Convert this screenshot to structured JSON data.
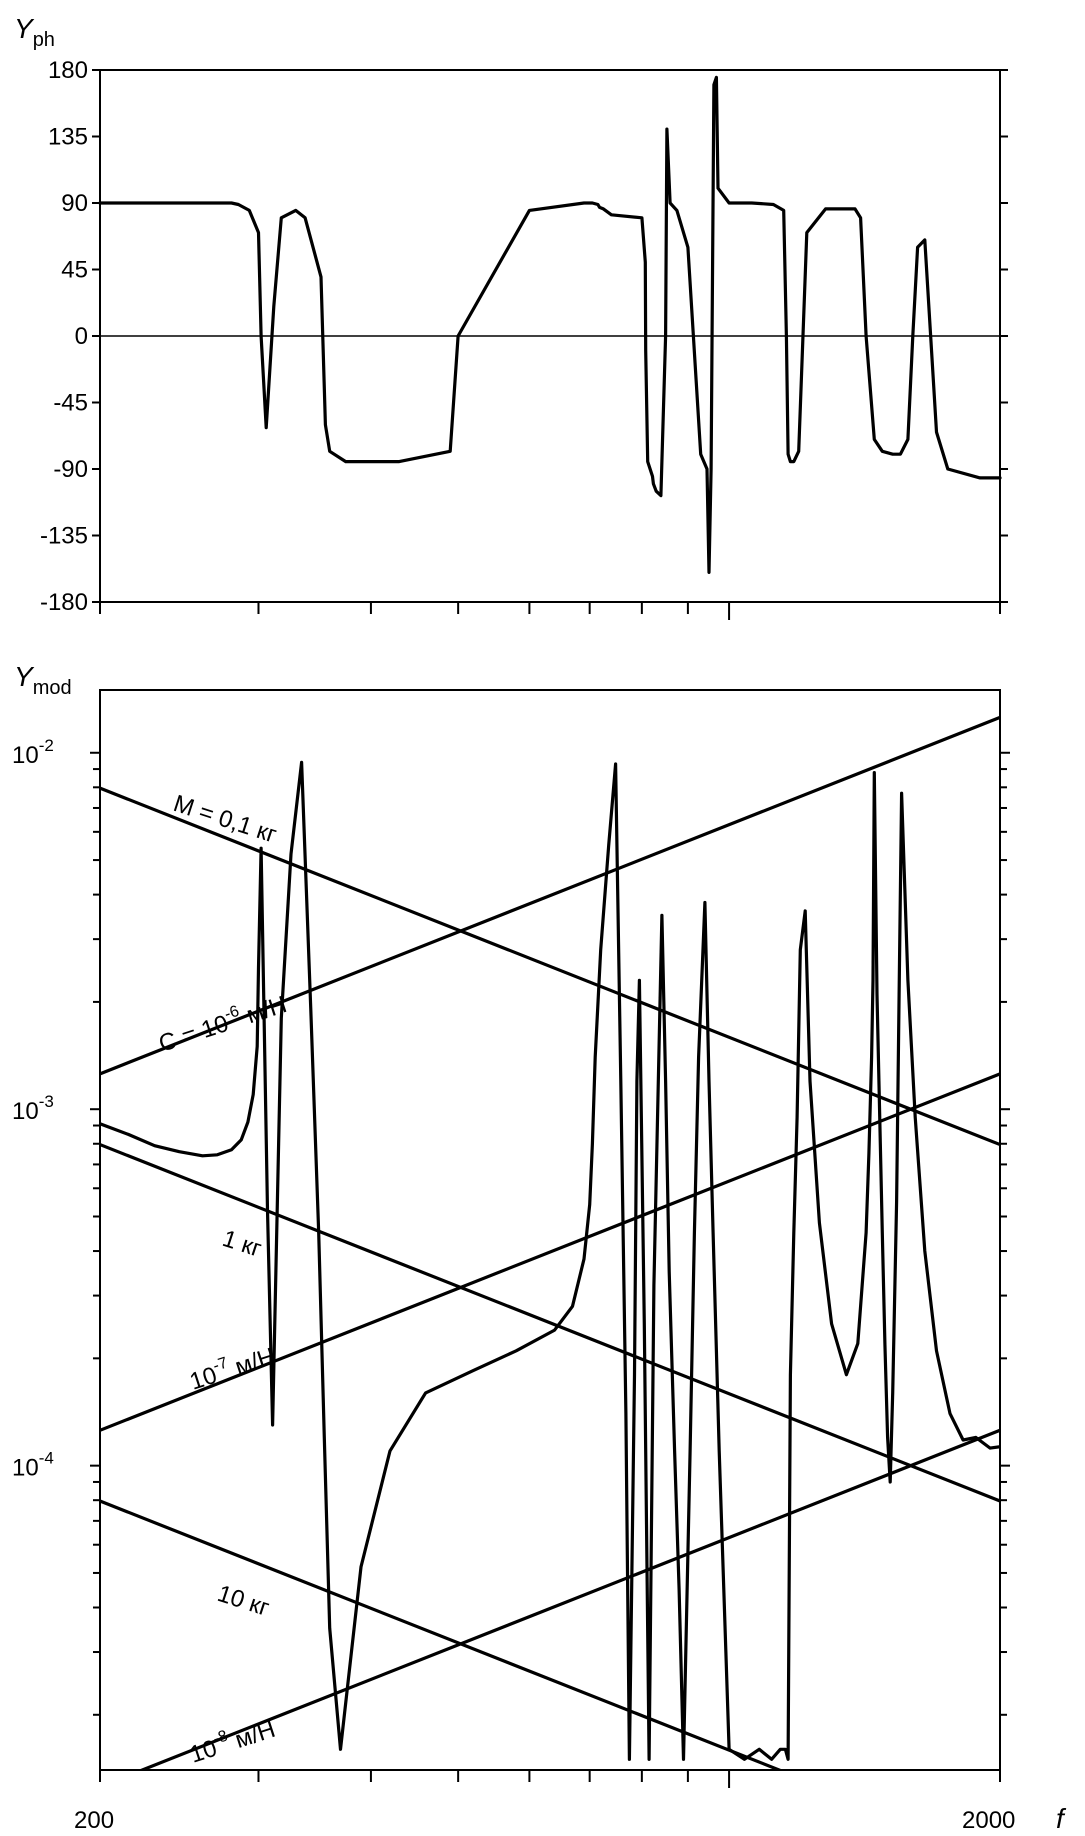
{
  "chart_data": [
    {
      "type": "line",
      "ylabel": "Y",
      "ylabel_sub": "ph",
      "xscale": "log",
      "xlim": [
        200,
        2000
      ],
      "ylim": [
        -180,
        180
      ],
      "yticks": [
        "180",
        "135",
        "90",
        "45",
        "0",
        "-45",
        "-90",
        "-135",
        "-180"
      ],
      "ytick_values": [
        180,
        135,
        90,
        45,
        0,
        -45,
        -90,
        -135,
        -180
      ],
      "zero_line": true,
      "series": [
        {
          "x": [
            200,
            280,
            285,
            293,
            300,
            302,
            306,
            312,
            318,
            330,
            338,
            352,
            356,
            360,
            375,
            430,
            490,
            500,
            600,
            690,
            705,
            715,
            718,
            725,
            740,
            800,
            807,
            808,
            812,
            822,
            824,
            830,
            840,
            850,
            853,
            860,
            875,
            900,
            930,
            945,
            950,
            955,
            962,
            968,
            972,
            1000,
            1060,
            1120,
            1150,
            1158,
            1163,
            1170,
            1180,
            1195,
            1220,
            1280,
            1380,
            1400,
            1420,
            1450,
            1480,
            1520,
            1550,
            1580,
            1600,
            1620,
            1650,
            1700,
            1750,
            1900,
            2000
          ],
          "y": [
            90,
            90,
            89,
            85,
            70,
            0,
            -62,
            20,
            80,
            85,
            80,
            40,
            -60,
            -78,
            -85,
            -85,
            -78,
            0,
            85,
            90,
            90,
            89,
            87,
            86,
            82,
            80,
            50,
            -10,
            -85,
            -95,
            -100,
            -105,
            -108,
            0,
            140,
            90,
            85,
            60,
            -80,
            -90,
            -160,
            -90,
            170,
            175,
            100,
            90,
            90,
            89,
            85,
            0,
            -80,
            -85,
            -85,
            -78,
            70,
            86,
            86,
            80,
            0,
            -70,
            -78,
            -80,
            -80,
            -70,
            0,
            60,
            65,
            -65,
            -90,
            -96,
            -96
          ]
        }
      ]
    },
    {
      "type": "line",
      "ylabel": "Y",
      "ylabel_sub": "mod",
      "xscale": "log",
      "yscale": "log",
      "xlim": [
        200,
        2000
      ],
      "ylim": [
        1.4e-05,
        0.015
      ],
      "xlabel": "f",
      "xticks": [
        "200",
        "2000"
      ],
      "ytick_labels": [
        {
          "value": 0.01,
          "base": "10",
          "exp": "-2"
        },
        {
          "value": 0.001,
          "base": "10",
          "exp": "-3"
        },
        {
          "value": 0.0001,
          "base": "10",
          "exp": "-4"
        }
      ],
      "reference_lines": [
        {
          "kind": "mass",
          "label": "M = 0,1 кг",
          "x": [
            200,
            2000
          ],
          "y": [
            0.0079577,
            0.00079577
          ]
        },
        {
          "kind": "mass",
          "label": "1 кг",
          "x": [
            200,
            2000
          ],
          "y": [
            0.00079577,
            7.9577e-05
          ]
        },
        {
          "kind": "mass",
          "label": "10 кг",
          "x": [
            200,
            2000
          ],
          "y": [
            7.9577e-05,
            7.9577e-06
          ]
        },
        {
          "kind": "compliance",
          "label_base": "C = 10",
          "label_exp": "-6",
          "label_unit": " м/Н",
          "x": [
            200,
            2000
          ],
          "y": [
            0.0012566,
            0.012566
          ]
        },
        {
          "kind": "compliance",
          "label_base": "10",
          "label_exp": "-7",
          "label_unit": " м/Н",
          "x": [
            200,
            2000
          ],
          "y": [
            0.00012566,
            0.0012566
          ]
        },
        {
          "kind": "compliance",
          "label_base": "10",
          "label_exp": "-8",
          "label_unit": " м/Н",
          "x": [
            200,
            2000
          ],
          "y": [
            1.2566e-05,
            0.00012566
          ]
        }
      ],
      "series": [
        {
          "x": [
            200,
            215,
            230,
            245,
            260,
            270,
            280,
            287,
            292,
            296,
            299,
            300,
            302,
            307,
            311,
            318,
            326,
            335,
            343,
            350,
            355,
            360,
            370,
            390,
            420,
            460,
            520,
            580,
            640,
            670,
            690,
            700,
            705,
            710,
            720,
            735,
            748,
            758,
            768,
            775,
            785,
            790,
            795,
            805,
            815,
            825,
            842,
            850,
            858,
            870,
            880,
            890,
            905,
            915,
            925,
            940,
            950,
            960,
            975,
            1000,
            1040,
            1080,
            1115,
            1140,
            1155,
            1163,
            1170,
            1180,
            1190,
            1200,
            1215,
            1230,
            1260,
            1300,
            1350,
            1390,
            1420,
            1430,
            1440,
            1445,
            1450,
            1460,
            1480,
            1490,
            1500,
            1510,
            1520,
            1535,
            1545,
            1555,
            1580,
            1610,
            1650,
            1700,
            1760,
            1820,
            1880,
            1950,
            2000
          ],
          "y": [
            0.00091,
            0.00085,
            0.00079,
            0.00076,
            0.00074,
            0.000745,
            0.00077,
            0.00082,
            0.00092,
            0.0011,
            0.0015,
            0.0025,
            0.0054,
            0.00052,
            0.00013,
            0.0018,
            0.0052,
            0.0094,
            0.0019,
            0.00045,
            0.00012,
            3.5e-05,
            1.6e-05,
            5.2e-05,
            0.00011,
            0.00016,
            0.000185,
            0.00021,
            0.00024,
            0.00028,
            0.00038,
            0.00054,
            0.0008,
            0.0014,
            0.0028,
            0.0055,
            0.0093,
            0.0012,
            0.00014,
            1.5e-05,
            0.00018,
            0.0012,
            0.0023,
            0.00025,
            1.5e-05,
            0.00032,
            0.0035,
            0.0012,
            0.00035,
            0.00011,
            4.5e-05,
            1.5e-05,
            0.00011,
            0.00045,
            0.0014,
            0.0038,
            0.0012,
            0.00045,
            0.00011,
            1.6e-05,
            1.5e-05,
            1.6e-05,
            1.5e-05,
            1.6e-05,
            1.6e-05,
            1.5e-05,
            0.00018,
            0.00045,
            0.00095,
            0.0028,
            0.0036,
            0.0012,
            0.00048,
            0.00025,
            0.00018,
            0.00022,
            0.00045,
            0.00075,
            0.0014,
            0.0023,
            0.0088,
            0.0021,
            0.00045,
            0.00022,
            0.00012,
            9e-05,
            0.00016,
            0.00055,
            0.0021,
            0.0077,
            0.0023,
            0.00095,
            0.0004,
            0.00021,
            0.00014,
            0.000118,
            0.00012,
            0.000112,
            0.000113
          ]
        }
      ]
    }
  ]
}
